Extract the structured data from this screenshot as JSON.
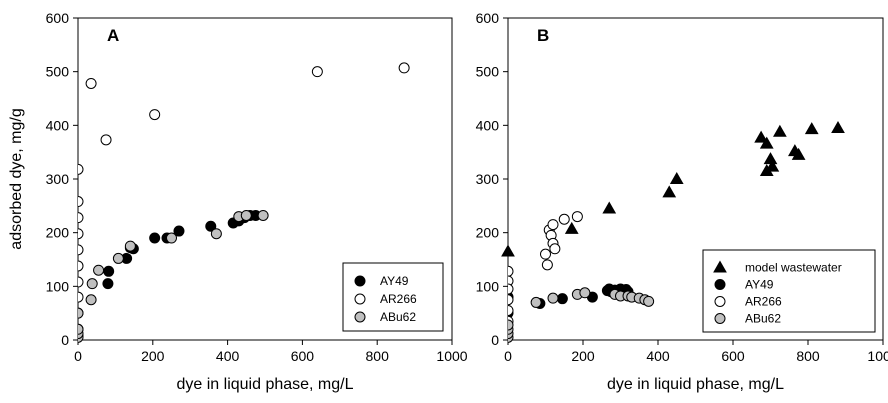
{
  "chart_data": [
    {
      "type": "scatter",
      "panel_label": "A",
      "xlabel": "dye in liquid phase, mg/L",
      "ylabel": "adsorbed dye, mg/g",
      "xlim": [
        0,
        1000
      ],
      "ylim": [
        0,
        600
      ],
      "xticks": [
        "0",
        "200",
        "400",
        "600",
        "800",
        "1000"
      ],
      "yticks": [
        "0",
        "100",
        "200",
        "300",
        "400",
        "500",
        "600"
      ],
      "grid": false,
      "legend_position": "bottom-right",
      "series": [
        {
          "name": "AY49",
          "marker": "circle",
          "fill": "#000000",
          "x": [
            80,
            82,
            130,
            140,
            148,
            205,
            238,
            270,
            355,
            415,
            430,
            445,
            460,
            475
          ],
          "y": [
            105,
            128,
            152,
            172,
            170,
            190,
            190,
            203,
            212,
            218,
            222,
            228,
            232,
            232
          ]
        },
        {
          "name": "AR266",
          "marker": "circle",
          "fill": "#ffffff",
          "x": [
            0,
            0,
            0,
            0,
            0,
            0,
            0,
            0,
            0,
            0,
            0,
            35,
            75,
            205,
            640,
            872
          ],
          "y": [
            318,
            258,
            228,
            198,
            168,
            138,
            108,
            80,
            50,
            20,
            8,
            478,
            373,
            420,
            500,
            507
          ],
          "clip_left": true
        },
        {
          "name": "ABu62",
          "marker": "circle",
          "fill": "#c0c0c0",
          "x": [
            0,
            0,
            0,
            0,
            35,
            38,
            55,
            108,
            140,
            250,
            370,
            430,
            450,
            495
          ],
          "y": [
            5,
            12,
            20,
            50,
            75,
            105,
            130,
            152,
            175,
            190,
            198,
            230,
            232,
            232
          ],
          "clip_left_first": 4
        }
      ]
    },
    {
      "type": "scatter",
      "panel_label": "B",
      "xlabel": "dye in liquid phase, mg/L",
      "ylabel": "",
      "xlim": [
        0,
        1000
      ],
      "ylim": [
        0,
        600
      ],
      "xticks": [
        "0",
        "200",
        "400",
        "600",
        "800",
        "1000"
      ],
      "yticks": [
        "0",
        "100",
        "200",
        "300",
        "400",
        "500",
        "600"
      ],
      "grid": false,
      "legend_position": "bottom-right",
      "series": [
        {
          "name": "model wastewater",
          "marker": "triangle",
          "fill": "#000000",
          "x": [
            0,
            170,
            270,
            430,
            450,
            675,
            690,
            690,
            700,
            705,
            725,
            765,
            775,
            810,
            880
          ],
          "y": [
            165,
            207,
            245,
            275,
            300,
            377,
            366,
            315,
            337,
            323,
            388,
            352,
            345,
            393,
            395
          ]
        },
        {
          "name": "AY49",
          "marker": "circle",
          "fill": "#000000",
          "x": [
            0,
            0,
            85,
            145,
            225,
            265,
            270,
            275,
            285,
            300,
            310,
            315,
            320
          ],
          "y": [
            50,
            80,
            68,
            77,
            80,
            92,
            95,
            90,
            93,
            95,
            88,
            94,
            90
          ]
        },
        {
          "name": "AR266",
          "marker": "circle",
          "fill": "#ffffff",
          "x": [
            0,
            0,
            0,
            0,
            0,
            0,
            100,
            105,
            110,
            115,
            120,
            120,
            125,
            150,
            185
          ],
          "y": [
            128,
            110,
            95,
            75,
            55,
            35,
            160,
            140,
            205,
            195,
            215,
            180,
            170,
            225,
            230
          ],
          "clip_left_first": 6
        },
        {
          "name": "ABu62",
          "marker": "circle",
          "fill": "#c0c0c0",
          "x": [
            0,
            0,
            0,
            0,
            75,
            120,
            185,
            205,
            285,
            300,
            320,
            330,
            350,
            365,
            375
          ],
          "y": [
            5,
            12,
            20,
            28,
            70,
            78,
            85,
            88,
            85,
            82,
            82,
            80,
            78,
            75,
            72
          ],
          "clip_left_first": 4
        }
      ]
    }
  ]
}
